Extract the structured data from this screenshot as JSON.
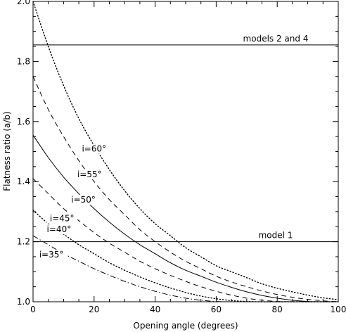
{
  "chart_data": {
    "type": "line",
    "title": "",
    "xlabel": "Opening angle (degrees)",
    "ylabel": "Flatness ratio (a/b)",
    "xlim": [
      0,
      100
    ],
    "ylim": [
      1.0,
      2.0
    ],
    "x_ticks": [
      0,
      20,
      40,
      60,
      80,
      100
    ],
    "x_tick_labels": [
      "0",
      "20",
      "40",
      "60",
      "80",
      "100"
    ],
    "y_ticks": [
      1.0,
      1.2,
      1.4,
      1.6,
      1.8,
      2.0
    ],
    "y_tick_labels": [
      "1.0",
      "1.2",
      "1.4",
      "1.6",
      "1.8",
      "2.0"
    ],
    "grid": false,
    "x": [
      0,
      5,
      10,
      15,
      20,
      25,
      30,
      35,
      40,
      45,
      50,
      55,
      60,
      65,
      70,
      75,
      80,
      85,
      90,
      95,
      100
    ],
    "series": [
      {
        "name": "i=60°",
        "style": "dotted",
        "values": [
          2.0,
          1.85,
          1.72,
          1.61,
          1.52,
          1.44,
          1.37,
          1.31,
          1.26,
          1.22,
          1.18,
          1.15,
          1.12,
          1.1,
          1.08,
          1.06,
          1.045,
          1.033,
          1.022,
          1.013,
          1.007
        ]
      },
      {
        "name": "i=55°",
        "style": "dashed",
        "values": [
          1.75,
          1.64,
          1.55,
          1.47,
          1.4,
          1.34,
          1.29,
          1.24,
          1.2,
          1.165,
          1.135,
          1.11,
          1.085,
          1.066,
          1.05,
          1.036,
          1.024,
          1.015,
          1.008,
          1.003,
          1.0
        ]
      },
      {
        "name": "i=50°",
        "style": "solid",
        "values": [
          1.555,
          1.48,
          1.415,
          1.36,
          1.31,
          1.265,
          1.225,
          1.19,
          1.16,
          1.13,
          1.105,
          1.085,
          1.065,
          1.048,
          1.033,
          1.021,
          1.012,
          1.005,
          1.001,
          1.0,
          1.0
        ]
      },
      {
        "name": "i=45°",
        "style": "dashed",
        "values": [
          1.41,
          1.36,
          1.31,
          1.27,
          1.23,
          1.195,
          1.165,
          1.135,
          1.11,
          1.088,
          1.068,
          1.05,
          1.035,
          1.022,
          1.012,
          1.005,
          1.001,
          1.0,
          1.0,
          1.0,
          1.0
        ]
      },
      {
        "name": "i=40°",
        "style": "dotted",
        "values": [
          1.305,
          1.26,
          1.225,
          1.19,
          1.16,
          1.13,
          1.105,
          1.083,
          1.063,
          1.046,
          1.031,
          1.019,
          1.01,
          1.004,
          1.001,
          1.0,
          1.0,
          1.0,
          1.0,
          1.0,
          1.0
        ]
      },
      {
        "name": "i=35°",
        "style": "dashdot",
        "values": [
          1.22,
          1.19,
          1.16,
          1.135,
          1.11,
          1.088,
          1.068,
          1.05,
          1.035,
          1.022,
          1.012,
          1.005,
          1.001,
          1.0,
          1.0,
          1.0,
          1.0,
          1.0,
          1.0,
          1.0,
          1.0
        ]
      }
    ],
    "reference_lines": [
      {
        "label": "models 2 and 4",
        "y": 1.855
      },
      {
        "label": "model 1",
        "y": 1.2
      }
    ],
    "curve_labels": [
      {
        "text": "i=60°",
        "x": 20,
        "y": 1.5
      },
      {
        "text": "i=55°",
        "x": 18.5,
        "y": 1.415
      },
      {
        "text": "i=50°",
        "x": 16.5,
        "y": 1.33
      },
      {
        "text": "i=45°",
        "x": 9.5,
        "y": 1.268
      },
      {
        "text": "i=40°",
        "x": 8.5,
        "y": 1.232
      },
      {
        "text": "i=35°",
        "x": 6,
        "y": 1.148
      }
    ]
  }
}
